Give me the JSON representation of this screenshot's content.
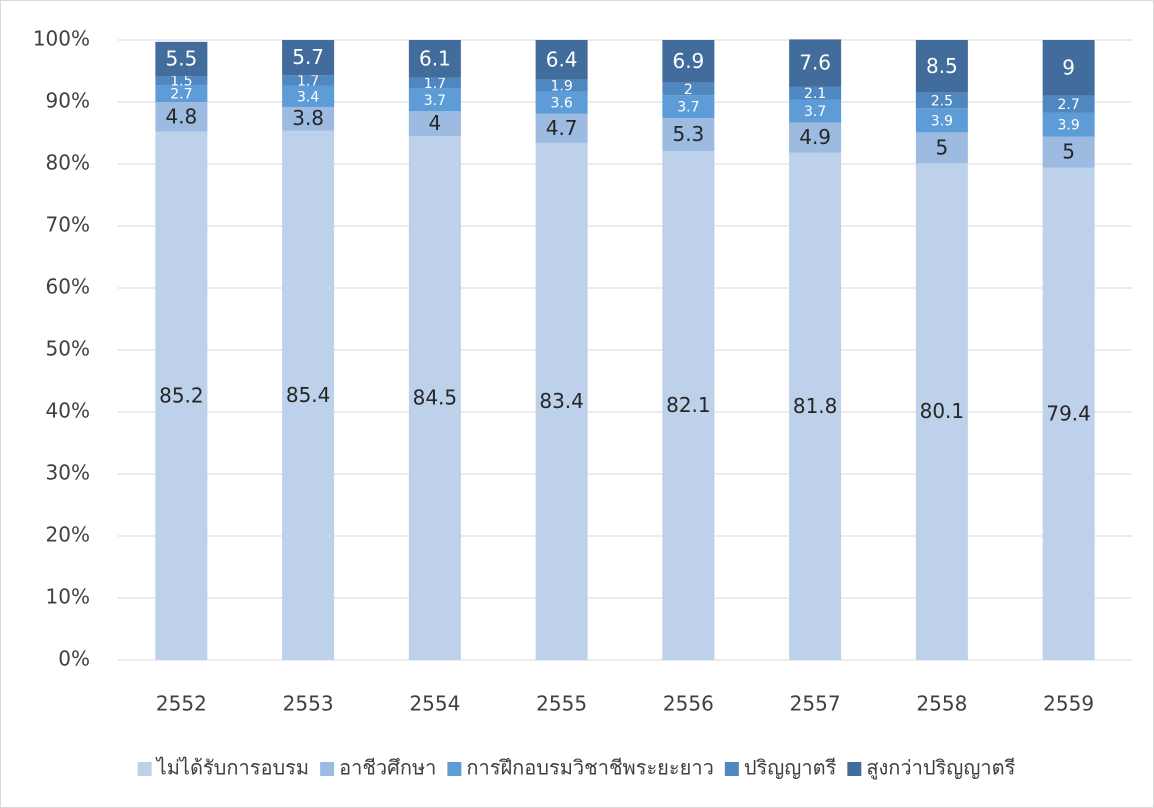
{
  "chart_data": {
    "type": "bar",
    "stacked": true,
    "categories": [
      "2552",
      "2553",
      "2554",
      "2555",
      "2556",
      "2557",
      "2558",
      "2559"
    ],
    "series": [
      {
        "name": "ไม่ได้รับการอบรม",
        "color": "#bdd1eb",
        "values": [
          85.2,
          85.4,
          84.5,
          83.4,
          82.1,
          81.8,
          80.1,
          79.4
        ]
      },
      {
        "name": "อาชีวศึกษา",
        "color": "#9dbbe1",
        "values": [
          4.8,
          3.8,
          4,
          4.7,
          5.3,
          4.9,
          5,
          5
        ]
      },
      {
        "name": "การฝึกอบรมวิชาชีพระยะยาว",
        "color": "#5d9cd7",
        "values": [
          2.7,
          3.4,
          3.7,
          3.6,
          3.7,
          3.7,
          3.9,
          3.9
        ]
      },
      {
        "name": "ปริญญาตรี",
        "color": "#4f87c0",
        "values": [
          1.5,
          1.7,
          1.7,
          1.9,
          2,
          2.1,
          2.5,
          2.7
        ]
      },
      {
        "name": "สูงกว่าปริญญาตรี",
        "color": "#416c9c",
        "values": [
          5.5,
          5.7,
          6.1,
          6.4,
          6.9,
          7.6,
          8.5,
          9
        ]
      }
    ],
    "ylim": [
      0,
      100
    ],
    "yticks": [
      {
        "value": 0,
        "label": "0%"
      },
      {
        "value": 10,
        "label": "10%"
      },
      {
        "value": 20,
        "label": "20%"
      },
      {
        "value": 30,
        "label": "30%"
      },
      {
        "value": 40,
        "label": "40%"
      },
      {
        "value": 50,
        "label": "50%"
      },
      {
        "value": 60,
        "label": "60%"
      },
      {
        "value": 70,
        "label": "70%"
      },
      {
        "value": 80,
        "label": "80%"
      },
      {
        "value": 90,
        "label": "90%"
      },
      {
        "value": 100,
        "label": "100%"
      }
    ],
    "grid": true,
    "legend": "bottom"
  }
}
